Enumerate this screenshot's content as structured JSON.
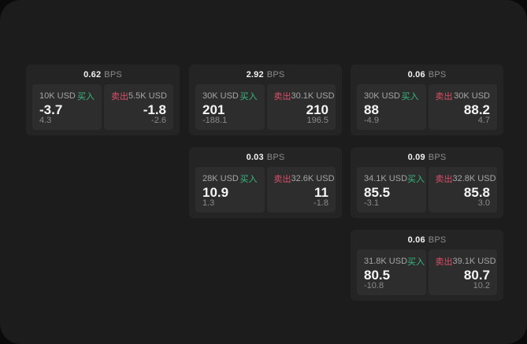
{
  "colors": {
    "buy_green": "#36b97d",
    "sell_red": "#d94f68",
    "page_background": "#1c1c1c",
    "card_background": "#242424",
    "panel_background": "#2d2d2d"
  },
  "cards": [
    {
      "bps": "0.62",
      "unit": "BPS",
      "buy": {
        "amount": "10K USD",
        "label": "买入",
        "value": "-3.7",
        "sub": "4.3"
      },
      "sell": {
        "label": "卖出",
        "amount": "5.5K USD",
        "value": "-1.8",
        "sub": "-2.6"
      }
    },
    {
      "bps": "2.92",
      "unit": "BPS",
      "buy": {
        "amount": "30K USD",
        "label": "买入",
        "value": "201",
        "sub": "-188.1"
      },
      "sell": {
        "label": "卖出",
        "amount": "30.1K USD",
        "value": "210",
        "sub": "196.5"
      }
    },
    {
      "bps": "0.06",
      "unit": "BPS",
      "buy": {
        "amount": "30K USD",
        "label": "买入",
        "value": "88",
        "sub": "-4.9"
      },
      "sell": {
        "label": "卖出",
        "amount": "30K USD",
        "value": "88.2",
        "sub": "4.7"
      }
    },
    {
      "bps": "0.03",
      "unit": "BPS",
      "buy": {
        "amount": "28K USD",
        "label": "买入",
        "value": "10.9",
        "sub": "1.3"
      },
      "sell": {
        "label": "卖出",
        "amount": "32.6K USD",
        "value": "11",
        "sub": "-1.8"
      }
    },
    {
      "bps": "0.09",
      "unit": "BPS",
      "buy": {
        "amount": "34.1K USD",
        "label": "买入",
        "value": "85.5",
        "sub": "-3.1"
      },
      "sell": {
        "label": "卖出",
        "amount": "32.8K USD",
        "value": "85.8",
        "sub": "3.0"
      }
    },
    {
      "bps": "0.06",
      "unit": "BPS",
      "buy": {
        "amount": "31.8K USD",
        "label": "买入",
        "value": "80.5",
        "sub": "-10.8"
      },
      "sell": {
        "label": "卖出",
        "amount": "39.1K USD",
        "value": "80.7",
        "sub": "10.2"
      }
    }
  ]
}
